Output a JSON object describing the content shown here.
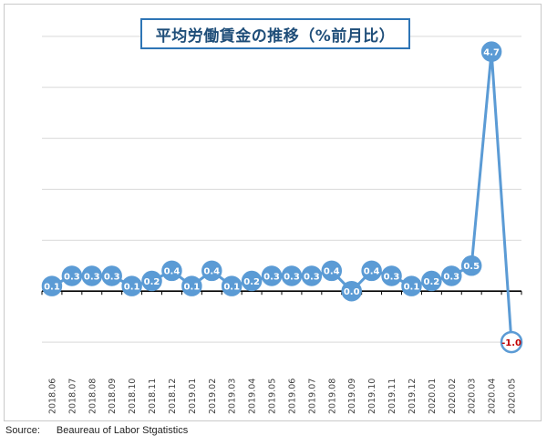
{
  "chart_data": {
    "type": "line",
    "title": "平均労働賃金の推移（%前月比）",
    "categories": [
      "2018.06",
      "2018.07",
      "2018.08",
      "2018.09",
      "2018.10",
      "2018.11",
      "2018.12",
      "2019.01",
      "2019.02",
      "2019.03",
      "2019.04",
      "2019.05",
      "2019.06",
      "2019.07",
      "2019.08",
      "2019.09",
      "2019.10",
      "2019.11",
      "2019.12",
      "2020.01",
      "2020.02",
      "2020.03",
      "2020.04",
      "2020.05"
    ],
    "series": [
      {
        "values": [
          0.1,
          0.3,
          0.3,
          0.3,
          0.1,
          0.2,
          0.4,
          0.1,
          0.4,
          0.1,
          0.2,
          0.3,
          0.3,
          0.3,
          0.4,
          0.0,
          0.4,
          0.3,
          0.1,
          0.2,
          0.3,
          0.5,
          4.7,
          -1.0
        ],
        "labels": [
          "0.1",
          "0.3",
          "0.3",
          "0.3",
          "0.1",
          "0.2",
          "0.4",
          "0.1",
          "0.4",
          "0.1",
          "0.2",
          "0.3",
          "0.3",
          "0.3",
          "0.4",
          "0.0",
          "0.4",
          "0.3",
          "0.1",
          "0.2",
          "0.3",
          "0.5",
          "4.7",
          "-1.0"
        ]
      }
    ],
    "ylim": [
      -1.5,
      5.5
    ],
    "grid": true,
    "legend": "none",
    "colors": {
      "line": "#5b9bd5",
      "marker_fill": "#5b9bd5",
      "label": "#ffffff",
      "negative_label": "#c00000",
      "zero_line": "#000000",
      "grid": "#d9d9d9"
    }
  },
  "source": {
    "prefix": "Source:",
    "text": "Beaureau of Labor Stgatistics"
  }
}
